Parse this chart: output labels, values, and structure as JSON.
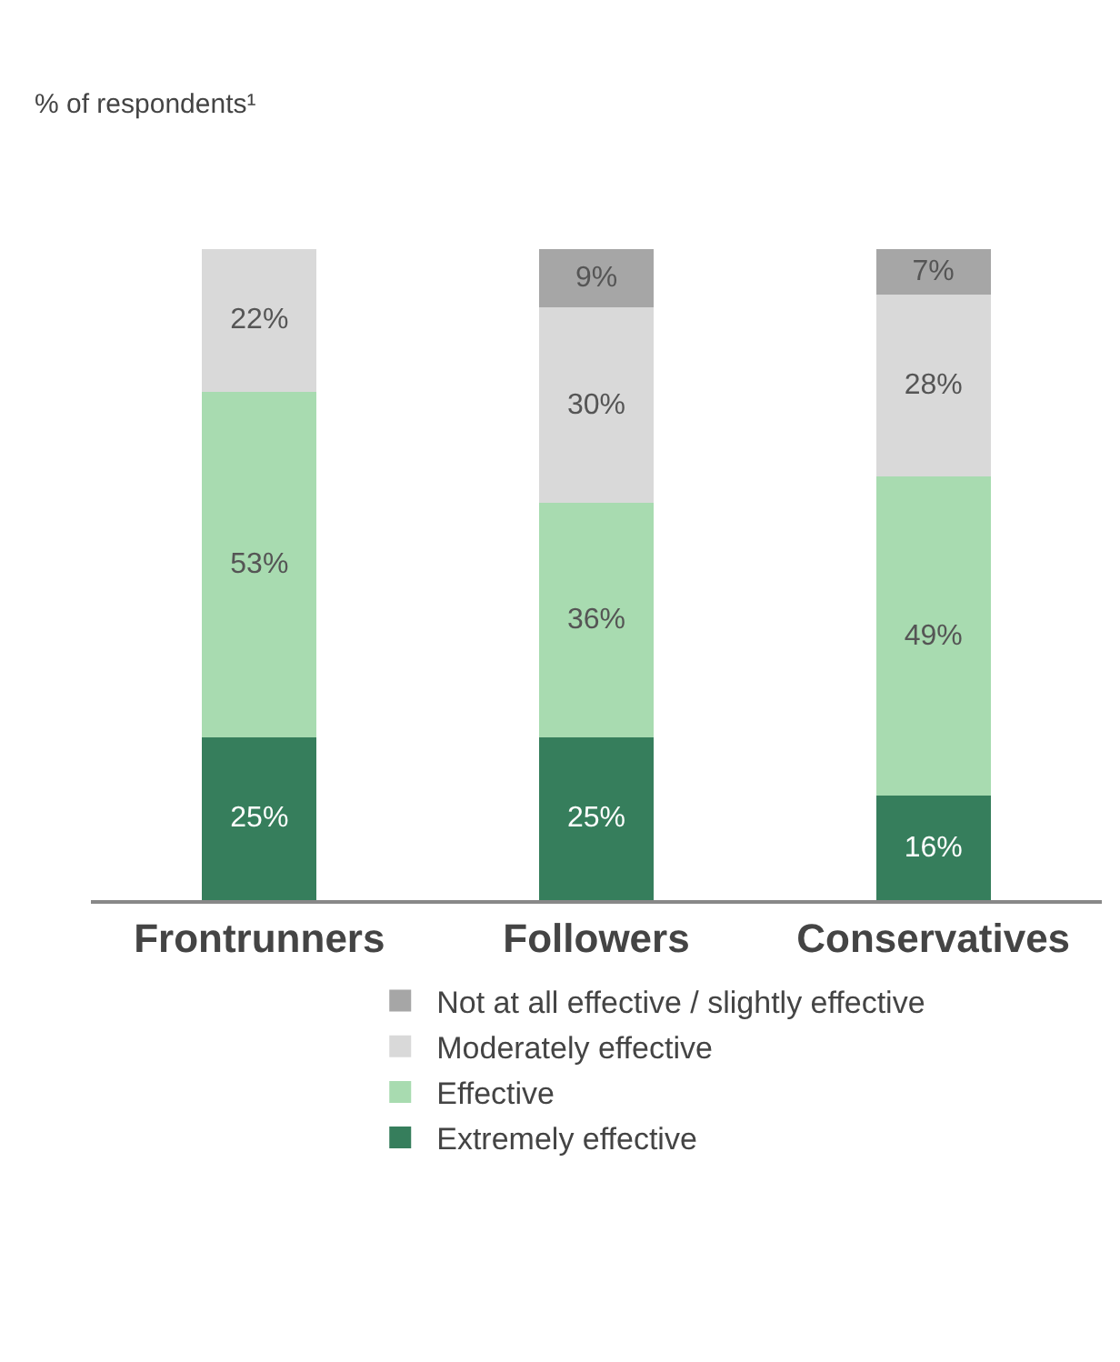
{
  "chart_data": {
    "type": "bar",
    "stacked": true,
    "subtitle": "% of respondents¹",
    "categories": [
      "Frontrunners",
      "Followers",
      "Conservatives"
    ],
    "legend": "bottom",
    "series": [
      {
        "name": "Extremely effective",
        "color": "#367e5c",
        "values": [
          25,
          25,
          16
        ],
        "value_labels": [
          "25%",
          "25%",
          "16%"
        ]
      },
      {
        "name": "Effective",
        "color": "#a8dbb0",
        "values": [
          53,
          36,
          49
        ],
        "value_labels": [
          "53%",
          "36%",
          "49%"
        ]
      },
      {
        "name": "Moderately effective",
        "color": "#d9d9d9",
        "values": [
          22,
          30,
          28
        ],
        "value_labels": [
          "22%",
          "30%",
          "28%"
        ]
      },
      {
        "name": "Not at all effective / slightly effective",
        "color": "#a6a6a6",
        "values": [
          null,
          9,
          7
        ],
        "value_labels": [
          null,
          "9%",
          "7%"
        ]
      }
    ]
  }
}
